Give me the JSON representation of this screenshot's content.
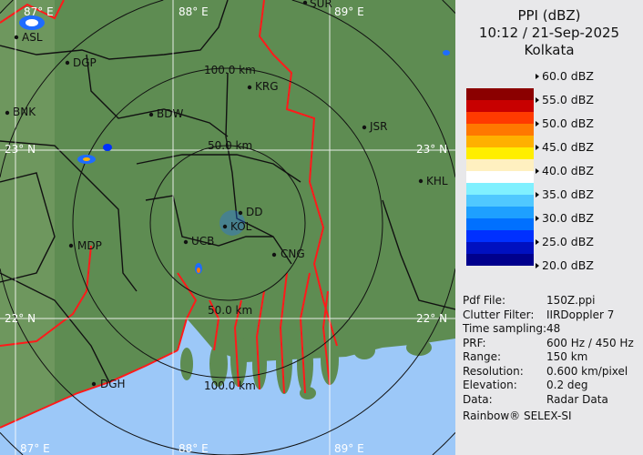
{
  "header": {
    "product": "PPI (dBZ)",
    "datetime": "10:12 / 21-Sep-2025",
    "station": "Kolkata"
  },
  "legend": {
    "ticks": [
      "60.0 dBZ",
      "55.0 dBZ",
      "50.0 dBZ",
      "45.0 dBZ",
      "40.0 dBZ",
      "35.0 dBZ",
      "30.0 dBZ",
      "25.0 dBZ",
      "20.0 dBZ"
    ],
    "colors": [
      "#8b0000",
      "#c80000",
      "#ff3a00",
      "#ff7800",
      "#ffb000",
      "#ffee00",
      "#fff0c0",
      "#ffffff",
      "#80f0ff",
      "#50c8ff",
      "#1ea0ff",
      "#0070ff",
      "#0030ff",
      "#0010c0",
      "#00008c"
    ]
  },
  "info": [
    {
      "key": "Pdf File:",
      "value": "150Z.ppi"
    },
    {
      "key": "Clutter Filter:",
      "value": "IIRDoppler 7"
    },
    {
      "key": "Time sampling:",
      "value": "48"
    },
    {
      "key": "PRF:",
      "value": "600 Hz / 450 Hz"
    },
    {
      "key": "Range:",
      "value": "150 km"
    },
    {
      "key": "Resolution:",
      "value": "0.600 km/pixel"
    },
    {
      "key": "Elevation:",
      "value": "0.2 deg"
    },
    {
      "key": "Data:",
      "value": "Radar Data"
    }
  ],
  "credit": "Rainbow® SELEX-SI",
  "map": {
    "colors": {
      "land": "#5e8c52",
      "sea": "#9cc8f8",
      "rivers": "#ff1a1a",
      "borders": "#111111",
      "grid": "#ffffff"
    },
    "grid_labels": {
      "lon_87": "87° E",
      "lon_88": "88° E",
      "lon_89": "89° E",
      "lat_23": "23° N",
      "lat_22": "22° N"
    },
    "range_rings": {
      "r50": "50.0 km",
      "r100": "100.0 km"
    },
    "cities": [
      "SUR",
      "ASL",
      "DGP",
      "BNK",
      "BDW",
      "KRG",
      "JSR",
      "KHL",
      "MDP",
      "UCB",
      "DD",
      "KOL",
      "CNG",
      "DGH"
    ]
  }
}
